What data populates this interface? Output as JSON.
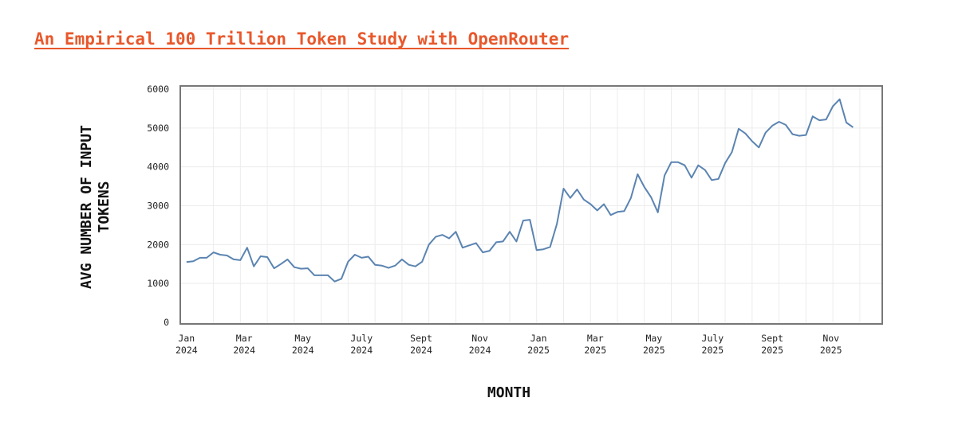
{
  "header": {
    "title": "An Empirical 100 Trillion Token Study with OpenRouter"
  },
  "colors": {
    "title": "#e8582c",
    "line": "#5b84b1",
    "frame": "#777777",
    "grid": "#ececec"
  },
  "chart_data": {
    "type": "line",
    "xlabel": "MONTH",
    "ylabel": "AVG NUMBER OF INPUT TOKENS",
    "ylim": [
      0,
      6000
    ],
    "yticks": [
      0,
      1000,
      2000,
      3000,
      4000,
      5000,
      6000
    ],
    "grid": true,
    "xticks": [
      {
        "date": "2024-01-01",
        "label": [
          "Jan",
          "2024"
        ]
      },
      {
        "date": "2024-03-01",
        "label": [
          "Mar",
          "2024"
        ]
      },
      {
        "date": "2024-05-01",
        "label": [
          "May",
          "2024"
        ]
      },
      {
        "date": "2024-07-01",
        "label": [
          "July",
          "2024"
        ]
      },
      {
        "date": "2024-09-01",
        "label": [
          "Sept",
          "2024"
        ]
      },
      {
        "date": "2024-11-01",
        "label": [
          "Nov",
          "2024"
        ]
      },
      {
        "date": "2025-01-01",
        "label": [
          "Jan",
          "2025"
        ]
      },
      {
        "date": "2025-03-01",
        "label": [
          "Mar",
          "2025"
        ]
      },
      {
        "date": "2025-05-01",
        "label": [
          "May",
          "2025"
        ]
      },
      {
        "date": "2025-07-01",
        "label": [
          "July",
          "2025"
        ]
      },
      {
        "date": "2025-09-01",
        "label": [
          "Sept",
          "2025"
        ]
      },
      {
        "date": "2025-11-01",
        "label": [
          "Nov",
          "2025"
        ]
      }
    ],
    "xlim": [
      "2023-12-28",
      "2025-12-21"
    ],
    "series": [
      {
        "points": [
          [
            "2024-01-01",
            1550
          ],
          [
            "2024-01-08",
            1570
          ],
          [
            "2024-01-15",
            1660
          ],
          [
            "2024-01-22",
            1660
          ],
          [
            "2024-01-29",
            1800
          ],
          [
            "2024-02-05",
            1740
          ],
          [
            "2024-02-12",
            1720
          ],
          [
            "2024-02-19",
            1620
          ],
          [
            "2024-02-26",
            1600
          ],
          [
            "2024-03-04",
            1920
          ],
          [
            "2024-03-11",
            1440
          ],
          [
            "2024-03-18",
            1700
          ],
          [
            "2024-03-25",
            1680
          ],
          [
            "2024-04-01",
            1390
          ],
          [
            "2024-04-08",
            1500
          ],
          [
            "2024-04-15",
            1620
          ],
          [
            "2024-04-22",
            1420
          ],
          [
            "2024-04-29",
            1380
          ],
          [
            "2024-05-06",
            1390
          ],
          [
            "2024-05-13",
            1210
          ],
          [
            "2024-05-20",
            1210
          ],
          [
            "2024-05-27",
            1210
          ],
          [
            "2024-06-03",
            1050
          ],
          [
            "2024-06-10",
            1120
          ],
          [
            "2024-06-17",
            1560
          ],
          [
            "2024-06-24",
            1740
          ],
          [
            "2024-07-01",
            1660
          ],
          [
            "2024-07-08",
            1690
          ],
          [
            "2024-07-15",
            1480
          ],
          [
            "2024-07-22",
            1460
          ],
          [
            "2024-07-29",
            1400
          ],
          [
            "2024-08-05",
            1460
          ],
          [
            "2024-08-12",
            1620
          ],
          [
            "2024-08-19",
            1480
          ],
          [
            "2024-08-26",
            1440
          ],
          [
            "2024-09-02",
            1560
          ],
          [
            "2024-09-09",
            2000
          ],
          [
            "2024-09-16",
            2200
          ],
          [
            "2024-09-23",
            2250
          ],
          [
            "2024-09-30",
            2160
          ],
          [
            "2024-10-07",
            2330
          ],
          [
            "2024-10-14",
            1920
          ],
          [
            "2024-10-21",
            1980
          ],
          [
            "2024-10-28",
            2040
          ],
          [
            "2024-11-04",
            1800
          ],
          [
            "2024-11-11",
            1840
          ],
          [
            "2024-11-18",
            2060
          ],
          [
            "2024-11-25",
            2080
          ],
          [
            "2024-12-02",
            2330
          ],
          [
            "2024-12-09",
            2080
          ],
          [
            "2024-12-16",
            2620
          ],
          [
            "2024-12-23",
            2640
          ],
          [
            "2024-12-30",
            1860
          ],
          [
            "2025-01-06",
            1880
          ],
          [
            "2025-01-13",
            1940
          ],
          [
            "2025-01-20",
            2530
          ],
          [
            "2025-01-27",
            3440
          ],
          [
            "2025-02-03",
            3200
          ],
          [
            "2025-02-10",
            3420
          ],
          [
            "2025-02-17",
            3160
          ],
          [
            "2025-02-24",
            3040
          ],
          [
            "2025-03-03",
            2880
          ],
          [
            "2025-03-10",
            3040
          ],
          [
            "2025-03-17",
            2760
          ],
          [
            "2025-03-24",
            2840
          ],
          [
            "2025-03-31",
            2860
          ],
          [
            "2025-04-07",
            3200
          ],
          [
            "2025-04-14",
            3810
          ],
          [
            "2025-04-21",
            3480
          ],
          [
            "2025-04-28",
            3220
          ],
          [
            "2025-05-05",
            2830
          ],
          [
            "2025-05-12",
            3780
          ],
          [
            "2025-05-19",
            4120
          ],
          [
            "2025-05-26",
            4120
          ],
          [
            "2025-06-02",
            4040
          ],
          [
            "2025-06-09",
            3720
          ],
          [
            "2025-06-16",
            4040
          ],
          [
            "2025-06-23",
            3920
          ],
          [
            "2025-06-30",
            3660
          ],
          [
            "2025-07-07",
            3690
          ],
          [
            "2025-07-14",
            4100
          ],
          [
            "2025-07-21",
            4380
          ],
          [
            "2025-07-28",
            4980
          ],
          [
            "2025-08-04",
            4860
          ],
          [
            "2025-08-11",
            4660
          ],
          [
            "2025-08-18",
            4500
          ],
          [
            "2025-08-25",
            4880
          ],
          [
            "2025-09-01",
            5060
          ],
          [
            "2025-09-08",
            5160
          ],
          [
            "2025-09-15",
            5080
          ],
          [
            "2025-09-22",
            4840
          ],
          [
            "2025-09-29",
            4800
          ],
          [
            "2025-10-06",
            4820
          ],
          [
            "2025-10-13",
            5300
          ],
          [
            "2025-10-20",
            5200
          ],
          [
            "2025-10-27",
            5220
          ],
          [
            "2025-11-03",
            5560
          ],
          [
            "2025-11-10",
            5740
          ],
          [
            "2025-11-17",
            5140
          ],
          [
            "2025-11-24",
            5020
          ]
        ]
      }
    ]
  }
}
